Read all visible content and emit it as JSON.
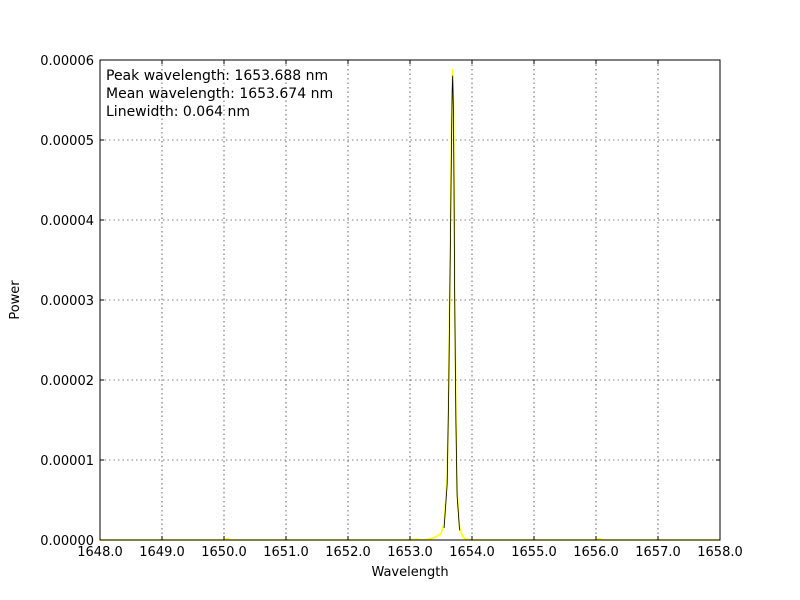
{
  "chart_data": {
    "type": "line",
    "title": "",
    "xlabel": "Wavelength",
    "ylabel": "Power",
    "xlim": [
      1648.0,
      1658.0
    ],
    "ylim": [
      0.0,
      6e-05
    ],
    "x_ticks": [
      1648.0,
      1649.0,
      1650.0,
      1651.0,
      1652.0,
      1653.0,
      1654.0,
      1655.0,
      1656.0,
      1657.0,
      1658.0
    ],
    "x_tick_labels": [
      "1648.0",
      "1649.0",
      "1650.0",
      "1651.0",
      "1652.0",
      "1653.0",
      "1654.0",
      "1655.0",
      "1656.0",
      "1657.0",
      "1658.0"
    ],
    "y_ticks": [
      0.0,
      1e-05,
      2e-05,
      3e-05,
      4e-05,
      5e-05,
      6e-05
    ],
    "y_tick_labels": [
      "0.00000",
      "0.00001",
      "0.00002",
      "0.00003",
      "0.00004",
      "0.00005",
      "0.00006"
    ],
    "grid": true,
    "annotations": [
      "Peak wavelength: 1653.688 nm",
      "Mean wavelength: 1653.674 nm",
      "Linewidth: 0.064 nm"
    ],
    "series": [
      {
        "color": "#ffff00",
        "x": [
          1648.0,
          1650.0,
          1650.05,
          1650.1,
          1652.0,
          1653.0,
          1653.1,
          1653.2,
          1653.3,
          1653.4,
          1653.5,
          1653.55,
          1653.6,
          1653.625,
          1653.65,
          1653.67,
          1653.68,
          1653.688,
          1653.7,
          1653.71,
          1653.72,
          1653.74,
          1653.76,
          1653.8,
          1653.85,
          1653.9,
          1654.0,
          1655.0,
          1656.0,
          1656.05,
          1656.1,
          1658.0
        ],
        "y": [
          0.0,
          0.0,
          2e-07,
          0.0,
          0.0,
          0.0,
          1e-07,
          0.0,
          1e-07,
          3e-07,
          8e-07,
          2e-06,
          8e-06,
          2e-05,
          3.8e-05,
          5.2e-05,
          5.7e-05,
          5.88e-05,
          5.5e-05,
          4.5e-05,
          3.2e-05,
          1.6e-05,
          6e-06,
          1.5e-06,
          4e-07,
          1e-07,
          0.0,
          0.0,
          0.0,
          2e-07,
          0.0,
          0.0
        ]
      },
      {
        "color": "#000000",
        "x": [
          1653.55,
          1653.6,
          1653.625,
          1653.65,
          1653.67,
          1653.68,
          1653.688,
          1653.7,
          1653.71,
          1653.72,
          1653.74,
          1653.76,
          1653.8
        ],
        "y": [
          1.5e-06,
          7e-06,
          1.9e-05,
          3.6e-05,
          5e-05,
          5.6e-05,
          5.8e-05,
          5.4e-05,
          4.4e-05,
          3.1e-05,
          1.5e-05,
          5.5e-06,
          1.2e-06
        ]
      }
    ]
  }
}
